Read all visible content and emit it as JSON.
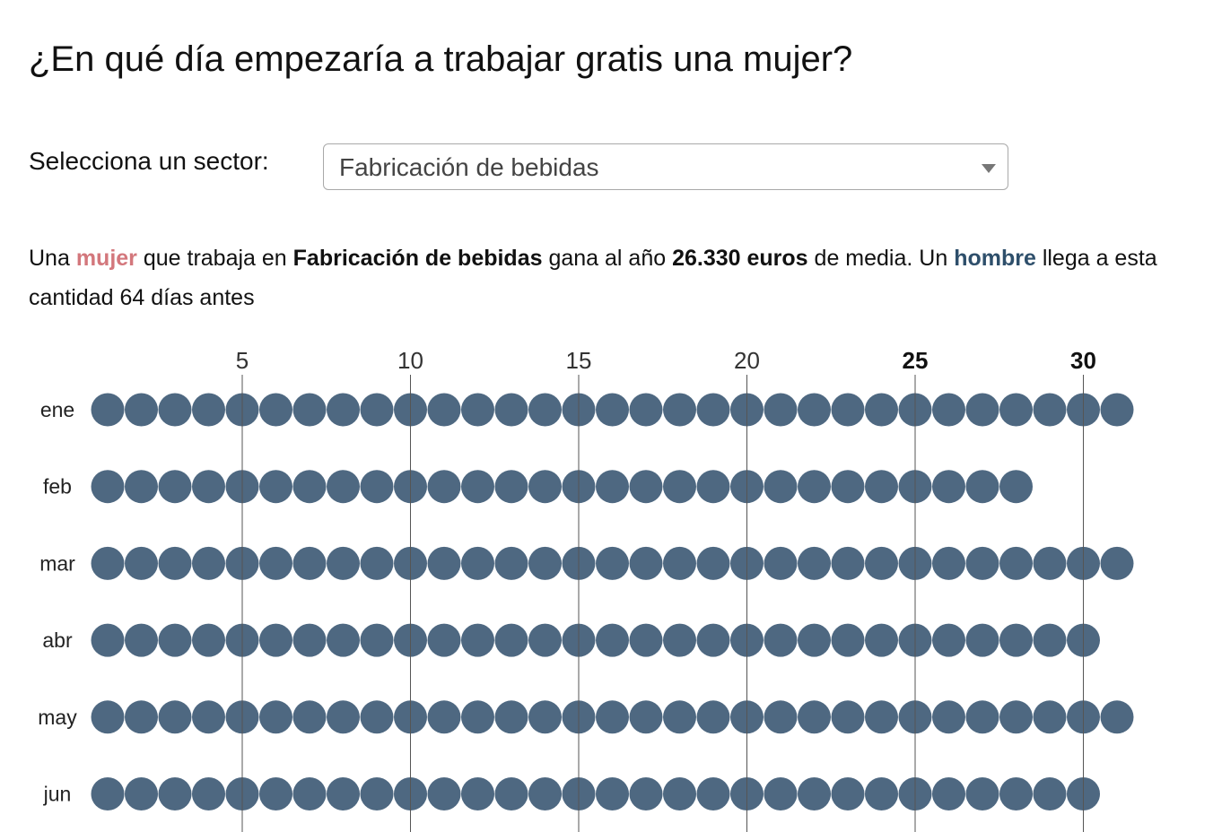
{
  "header": {
    "title": "¿En qué día empezaría a trabajar gratis una mujer?"
  },
  "selector": {
    "label": "Selecciona un sector:",
    "value": "Fabricación de bebidas"
  },
  "summary": {
    "part1": "Una ",
    "woman": "mujer",
    "part2": " que trabaja en ",
    "sector": "Fabricación de bebidas",
    "part3": " gana al año ",
    "amount": "26.330 euros",
    "part4": " de media. Un ",
    "man": "hombre",
    "part5": " llega a esta cantidad 64 días antes"
  },
  "colors": {
    "woman": "#d3777c",
    "man": "#2e4f6b",
    "dot": "#48637d",
    "gridline": "#555555"
  },
  "chart_data": {
    "type": "dot-calendar",
    "title": "¿En qué día empezaría a trabajar gratis una mujer?",
    "x_ticks": [
      5,
      10,
      15,
      20,
      25,
      30
    ],
    "bold_ticks": [
      25,
      30
    ],
    "months": [
      {
        "label": "ene",
        "days": 31
      },
      {
        "label": "feb",
        "days": 28
      },
      {
        "label": "mar",
        "days": 31
      },
      {
        "label": "abr",
        "days": 30
      },
      {
        "label": "may",
        "days": 31
      },
      {
        "label": "jun",
        "days": 30
      }
    ],
    "days_earlier": 64
  }
}
